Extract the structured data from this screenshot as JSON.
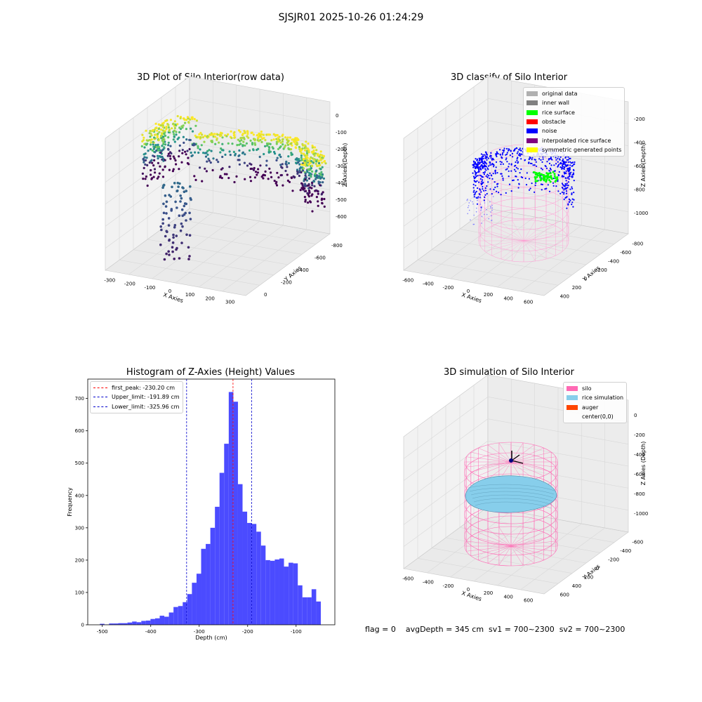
{
  "suptitle": "SJSJR01 2025-10-26 01:24:29",
  "colors": {
    "hist_bar": "#4b4bff",
    "first_peak": "#ff0000",
    "limits": "#0000cc",
    "silo": "#ff69b4",
    "rice_simulation": "#87ceeb",
    "auger": "#ff4500"
  },
  "panels": {
    "raw": {
      "title": "3D Plot of Silo Interior(row data)",
      "xlabel": "X Axies",
      "ylabel": "Y Axies",
      "zlabel": "Z Axies (Depth)",
      "xticks": [
        "-300",
        "-200",
        "-100",
        "0",
        "100",
        "200",
        "300"
      ],
      "yticks": [
        "0",
        "-200",
        "-400",
        "-600",
        "-800"
      ],
      "zticks": [
        "0",
        "-100",
        "-200",
        "-300",
        "-400",
        "-500",
        "-600"
      ]
    },
    "classify": {
      "title": "3D classify of Silo Interior",
      "xlabel": "X Axies",
      "ylabel": "Y Axies",
      "zlabel": "Z Axies (Depth)",
      "xticks": [
        "-600",
        "-400",
        "-200",
        "0",
        "200",
        "400",
        "600"
      ],
      "yticks": [
        "400",
        "200",
        "0",
        "-200",
        "-400",
        "-600",
        "-800"
      ],
      "zticks": [
        "-200",
        "-400",
        "-600",
        "-800",
        "-1000"
      ],
      "legend": [
        {
          "label": "original data",
          "color": "#b0b0b0"
        },
        {
          "label": "inner wall",
          "color": "#808080"
        },
        {
          "label": "rice surface",
          "color": "#00ff00"
        },
        {
          "label": "obstacle",
          "color": "#ff0000"
        },
        {
          "label": "noise",
          "color": "#0000ff"
        },
        {
          "label": "interpolated rice surface",
          "color": "#800080"
        },
        {
          "label": "symmetric generated points",
          "color": "#ffff00"
        }
      ]
    },
    "simulation": {
      "title": "3D simulation of Silo Interior",
      "xlabel": "X Axies",
      "ylabel": "Y Axies",
      "zlabel": "Z Axies (Depth)",
      "xticks": [
        "-600",
        "-400",
        "-200",
        "0",
        "200",
        "400",
        "600"
      ],
      "yticks": [
        "600",
        "400",
        "200",
        "0",
        "-200",
        "-400",
        "-600"
      ],
      "zticks": [
        "0",
        "-200",
        "-400",
        "-600",
        "-800",
        "-1000"
      ],
      "legend": [
        {
          "label": "silo",
          "color": "#ff69b4"
        },
        {
          "label": "rice simulation",
          "color": "#87ceeb"
        },
        {
          "label": "auger",
          "color": "#ff4500"
        },
        {
          "label": "center(0,0)",
          "color": ""
        }
      ]
    }
  },
  "footer": "flag = 0    avgDepth = 345 cm  sv1 = 700~2300  sv2 = 700~2300",
  "chart_data": [
    {
      "type": "bar",
      "title": "Histogram of Z-Axies (Height) Values",
      "xlabel": "Depth (cm)",
      "ylabel": "Frequency",
      "xlim": [
        -530,
        -20
      ],
      "ylim": [
        0,
        760
      ],
      "xticks": [
        -500,
        -400,
        -300,
        -200,
        -100
      ],
      "yticks": [
        0,
        100,
        200,
        300,
        400,
        500,
        600,
        700
      ],
      "bin_width": 9.5,
      "bin_start": -505,
      "values": [
        3,
        1,
        4,
        4,
        5,
        5,
        7,
        10,
        8,
        12,
        13,
        18,
        20,
        28,
        25,
        38,
        55,
        58,
        70,
        95,
        130,
        158,
        235,
        250,
        300,
        365,
        470,
        560,
        720,
        690,
        435,
        350,
        315,
        312,
        288,
        245,
        200,
        198,
        202,
        205,
        180,
        192,
        190,
        122,
        85,
        85,
        110,
        72
      ],
      "vlines": [
        {
          "label": "first_peak: -230.20 cm",
          "x": -230.2,
          "color": "#ff0000"
        },
        {
          "label": "Upper_limit: -191.89 cm",
          "x": -191.89,
          "color": "#0000cc"
        },
        {
          "label": "Lower_limit: -325.96 cm",
          "x": -325.96,
          "color": "#0000cc"
        }
      ],
      "grid": false,
      "legend_position": "top-left"
    }
  ]
}
